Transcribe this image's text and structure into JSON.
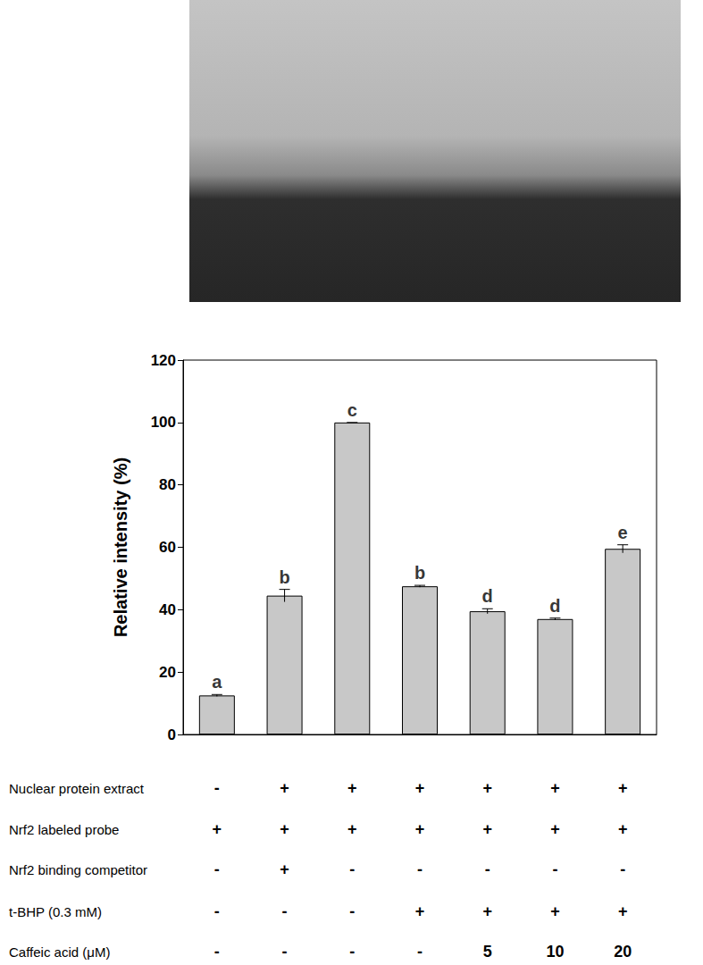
{
  "chart_data": {
    "type": "bar",
    "categories": [
      null,
      null,
      null,
      null,
      null,
      null,
      null
    ],
    "values": [
      12.5,
      44.5,
      100,
      47.5,
      39.5,
      37,
      59.5
    ],
    "errors": [
      0.3,
      2,
      0,
      0.3,
      0.8,
      0.3,
      1.3
    ],
    "annotations": [
      "a",
      "b",
      "c",
      "b",
      "d",
      "d",
      "e"
    ],
    "color": "#c8c8c8",
    "y_label": "Relative intensity (%)",
    "ylim": [
      0,
      120
    ],
    "yticks": [
      0,
      20,
      40,
      60,
      80,
      100,
      120
    ],
    "grid": false
  },
  "table": {
    "rows": [
      {
        "label": "Nuclear protein extract",
        "cells": [
          "-",
          "+",
          "+",
          "+",
          "+",
          "+",
          "+"
        ]
      },
      {
        "label": "Nrf2 labeled probe",
        "cells": [
          "+",
          "+",
          "+",
          "+",
          "+",
          "+",
          "+"
        ]
      },
      {
        "label": "Nrf2 binding competitor",
        "cells": [
          "-",
          "+",
          "-",
          "-",
          "-",
          "-",
          "-"
        ]
      },
      {
        "label": "t-BHP (0.3 mM)",
        "cells": [
          "-",
          "-",
          "-",
          "+",
          "+",
          "+",
          "+"
        ]
      },
      {
        "label": "Caffeic acid (μM)",
        "cells": [
          "-",
          "-",
          "-",
          "-",
          "5",
          "10",
          "20"
        ]
      }
    ]
  }
}
